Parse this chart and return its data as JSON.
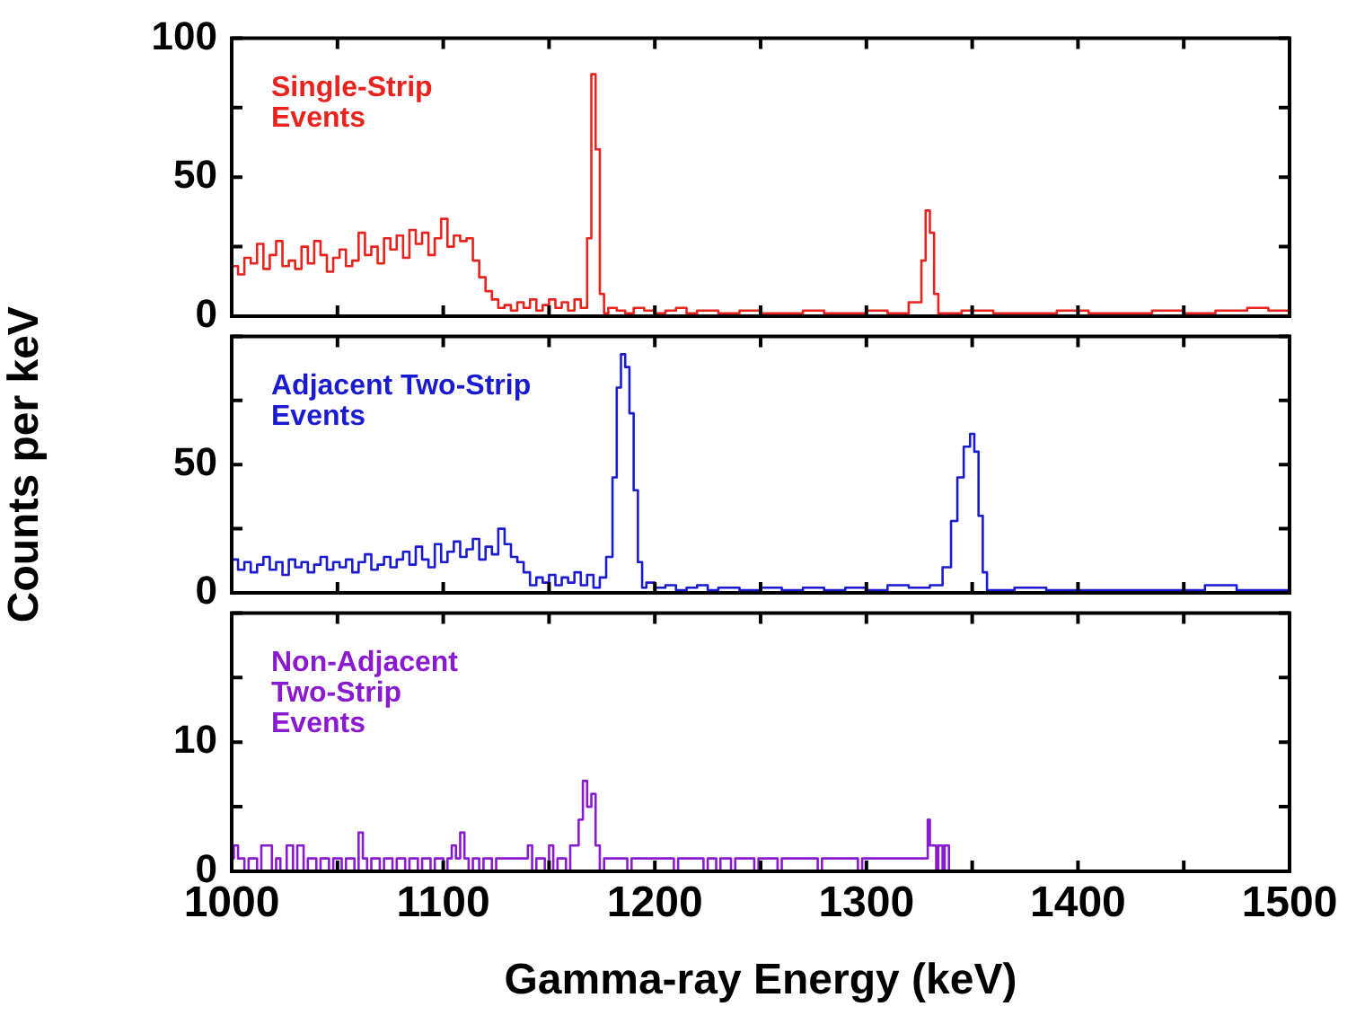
{
  "chart_data": [
    {
      "type": "step",
      "marker": "none",
      "xlim": [
        1000,
        1500
      ],
      "xticks": [
        1000,
        {
          "value": 1050,
          "label": null
        },
        1100,
        {
          "value": 1150,
          "label": null
        },
        1200,
        {
          "value": 1250,
          "label": null
        },
        1300,
        {
          "value": 1350,
          "label": null
        },
        1400,
        {
          "value": 1450,
          "label": null
        },
        1500
      ],
      "ylim": [
        0,
        100
      ],
      "yticks": [
        0,
        {
          "value": 25,
          "label": null
        },
        50,
        {
          "value": 75,
          "label": null
        },
        100
      ],
      "tick_labels": "y",
      "series": [
        {
          "name": "Single-Strip Events",
          "color": "#e8231d",
          "x": [
            1000,
            1003,
            1006,
            1009,
            1012,
            1015,
            1018,
            1021,
            1024,
            1027,
            1030,
            1033,
            1036,
            1039,
            1042,
            1045,
            1048,
            1051,
            1054,
            1057,
            1060,
            1063,
            1066,
            1069,
            1072,
            1075,
            1078,
            1081,
            1084,
            1087,
            1090,
            1093,
            1096,
            1099,
            1102,
            1105,
            1108,
            1111,
            1114,
            1117,
            1120,
            1123,
            1126,
            1129,
            1132,
            1135,
            1138,
            1141,
            1144,
            1147,
            1150,
            1153,
            1156,
            1159,
            1162,
            1165,
            1168,
            1170,
            1172,
            1174,
            1176,
            1178,
            1182,
            1186,
            1190,
            1195,
            1200,
            1205,
            1210,
            1215,
            1220,
            1230,
            1240,
            1250,
            1260,
            1270,
            1280,
            1290,
            1300,
            1310,
            1320,
            1326,
            1328,
            1330,
            1332,
            1334,
            1336,
            1345,
            1360,
            1375,
            1390,
            1405,
            1420,
            1435,
            1450,
            1465,
            1480,
            1490,
            1498,
            1500
          ],
          "values": [
            22,
            18,
            15,
            21,
            19,
            26,
            17,
            22,
            27,
            18,
            20,
            17,
            25,
            19,
            27,
            22,
            16,
            21,
            24,
            18,
            20,
            30,
            22,
            25,
            19,
            28,
            24,
            29,
            21,
            31,
            26,
            30,
            22,
            28,
            35,
            25,
            29,
            27,
            28,
            20,
            14,
            9,
            6,
            3,
            4,
            2,
            5,
            3,
            6,
            2,
            4,
            6,
            3,
            5,
            2,
            6,
            3,
            28,
            87,
            60,
            8,
            1,
            3,
            2,
            1,
            3,
            2,
            1,
            2,
            3,
            1,
            2,
            1,
            2,
            1,
            1,
            2,
            1,
            1,
            2,
            1,
            5,
            20,
            38,
            30,
            8,
            1,
            1,
            2,
            1,
            1,
            2,
            1,
            1,
            2,
            1,
            2,
            3,
            2,
            2
          ]
        }
      ]
    },
    {
      "type": "step",
      "marker": "none",
      "ylabel": "Counts per keV",
      "xlim": [
        1000,
        1500
      ],
      "xticks": [
        1000,
        {
          "value": 1050,
          "label": null
        },
        1100,
        {
          "value": 1150,
          "label": null
        },
        1200,
        {
          "value": 1250,
          "label": null
        },
        1300,
        {
          "value": 1350,
          "label": null
        },
        1400,
        {
          "value": 1450,
          "label": null
        },
        1500
      ],
      "ylim": [
        0,
        100
      ],
      "yticks": [
        0,
        {
          "value": 25,
          "label": null
        },
        50,
        {
          "value": 75,
          "label": null
        },
        {
          "value": 100,
          "label": null
        }
      ],
      "tick_labels": "y",
      "series": [
        {
          "name": "Adjacent Two-Strip Events",
          "color": "#1a1ad0",
          "x": [
            1000,
            1003,
            1006,
            1009,
            1012,
            1015,
            1018,
            1021,
            1024,
            1027,
            1030,
            1033,
            1036,
            1039,
            1042,
            1045,
            1048,
            1051,
            1054,
            1057,
            1060,
            1063,
            1066,
            1069,
            1072,
            1075,
            1078,
            1081,
            1084,
            1087,
            1090,
            1093,
            1096,
            1099,
            1102,
            1105,
            1108,
            1111,
            1114,
            1117,
            1120,
            1123,
            1126,
            1129,
            1132,
            1135,
            1138,
            1141,
            1144,
            1147,
            1150,
            1153,
            1156,
            1159,
            1162,
            1165,
            1168,
            1171,
            1174,
            1177,
            1180,
            1182,
            1184,
            1186,
            1188,
            1190,
            1192,
            1194,
            1196,
            1200,
            1205,
            1210,
            1215,
            1220,
            1225,
            1230,
            1240,
            1250,
            1260,
            1270,
            1280,
            1290,
            1300,
            1310,
            1320,
            1330,
            1336,
            1340,
            1343,
            1346,
            1349,
            1351,
            1353,
            1355,
            1357,
            1359,
            1370,
            1385,
            1400,
            1420,
            1440,
            1460,
            1475,
            1478,
            1490,
            1500
          ],
          "values": [
            10,
            13,
            9,
            12,
            8,
            11,
            14,
            9,
            12,
            7,
            13,
            10,
            12,
            8,
            11,
            14,
            9,
            12,
            10,
            13,
            8,
            12,
            15,
            9,
            11,
            14,
            10,
            13,
            16,
            11,
            18,
            13,
            10,
            19,
            12,
            16,
            20,
            14,
            17,
            21,
            13,
            18,
            15,
            25,
            19,
            14,
            12,
            8,
            3,
            6,
            4,
            7,
            3,
            6,
            4,
            8,
            3,
            7,
            2,
            6,
            14,
            45,
            80,
            93,
            88,
            70,
            40,
            12,
            2,
            4,
            2,
            3,
            1,
            2,
            3,
            1,
            2,
            1,
            2,
            1,
            2,
            1,
            2,
            1,
            3,
            2,
            3,
            10,
            28,
            45,
            57,
            62,
            55,
            30,
            8,
            1,
            1,
            2,
            1,
            1,
            1,
            1,
            3,
            1,
            1,
            1
          ]
        }
      ]
    },
    {
      "type": "step",
      "marker": "none",
      "xlabel": "Gamma-ray Energy (keV)",
      "xlim": [
        1000,
        1500
      ],
      "xticks": [
        1000,
        {
          "value": 1050,
          "label": null
        },
        1100,
        {
          "value": 1150,
          "label": null
        },
        1200,
        {
          "value": 1250,
          "label": null
        },
        1300,
        {
          "value": 1350,
          "label": null
        },
        1400,
        {
          "value": 1450,
          "label": null
        },
        1500
      ],
      "ylim": [
        0,
        20
      ],
      "yticks": [
        0,
        {
          "value": 5,
          "label": null
        },
        10,
        {
          "value": 15,
          "label": null
        },
        {
          "value": 20,
          "label": null
        }
      ],
      "series": [
        {
          "name": "Non-Adjacent Two-Strip Events",
          "color": "#8a1ad0",
          "x": [
            1000,
            1001,
            1003,
            1006,
            1008,
            1012,
            1014,
            1019,
            1021,
            1023,
            1026,
            1029,
            1031,
            1034,
            1036,
            1040,
            1042,
            1046,
            1048,
            1052,
            1054,
            1058,
            1060,
            1062,
            1064,
            1066,
            1070,
            1072,
            1076,
            1078,
            1082,
            1084,
            1088,
            1090,
            1094,
            1096,
            1100,
            1102,
            1104,
            1106,
            1108,
            1110,
            1112,
            1114,
            1117,
            1119,
            1123,
            1125,
            1140,
            1142,
            1144,
            1148,
            1150,
            1152,
            1154,
            1158,
            1160,
            1164,
            1166,
            1168,
            1170,
            1172,
            1174,
            1176,
            1187,
            1189,
            1209,
            1211,
            1223,
            1225,
            1229,
            1231,
            1236,
            1238,
            1247,
            1249,
            1258,
            1260,
            1277,
            1279,
            1296,
            1298,
            1329,
            1330,
            1333,
            1334,
            1336,
            1337,
            1339,
            1340
          ],
          "values": [
            0,
            1,
            2,
            1,
            0,
            1,
            0,
            2,
            0,
            1,
            0,
            2,
            0,
            2,
            0,
            1,
            0,
            1,
            0,
            1,
            0,
            1,
            0,
            3,
            1,
            0,
            1,
            0,
            1,
            0,
            1,
            0,
            1,
            0,
            1,
            0,
            1,
            0,
            1,
            2,
            1,
            3,
            1,
            0,
            1,
            0,
            1,
            0,
            1,
            2,
            0,
            1,
            0,
            2,
            0,
            1,
            0,
            2,
            4,
            7,
            5,
            6,
            2,
            0,
            1,
            0,
            1,
            0,
            1,
            0,
            1,
            0,
            1,
            0,
            1,
            0,
            1,
            0,
            1,
            0,
            1,
            0,
            1,
            4,
            2,
            0,
            2,
            0,
            2,
            0
          ]
        }
      ]
    }
  ]
}
